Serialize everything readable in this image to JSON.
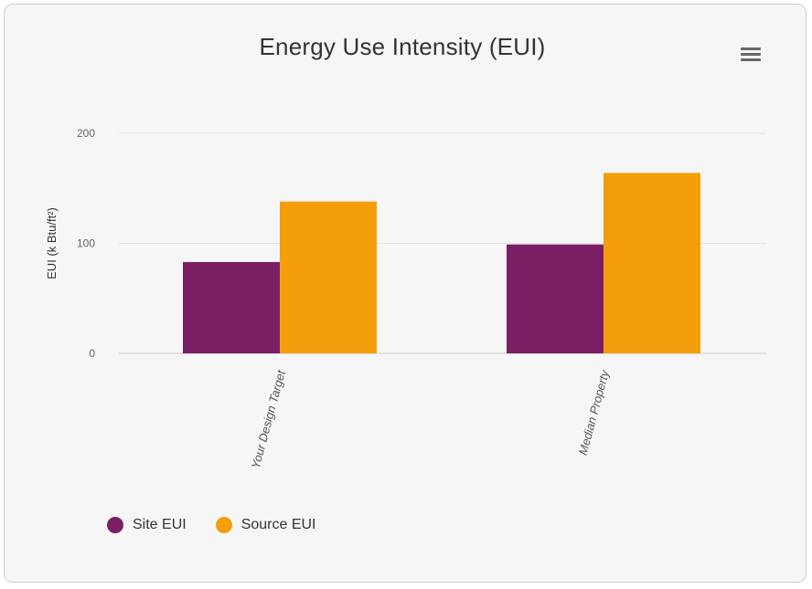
{
  "menu": {
    "icon": "hamburger-menu-icon"
  },
  "chart_data": {
    "type": "bar",
    "title": "Energy Use Intensity (EUI)",
    "ylabel": "EUI (k Btu/ft²)",
    "xlabel": "",
    "categories": [
      "Your Design Target",
      "Median Property"
    ],
    "ylim": [
      0,
      200
    ],
    "yticks": [
      0,
      100,
      200
    ],
    "grid": true,
    "legend_position": "bottom-left",
    "series": [
      {
        "name": "Site EUI",
        "color": "#7b1f64",
        "values": [
          83,
          99
        ]
      },
      {
        "name": "Source EUI",
        "color": "#f59e0b",
        "values": [
          138,
          164
        ]
      }
    ]
  }
}
